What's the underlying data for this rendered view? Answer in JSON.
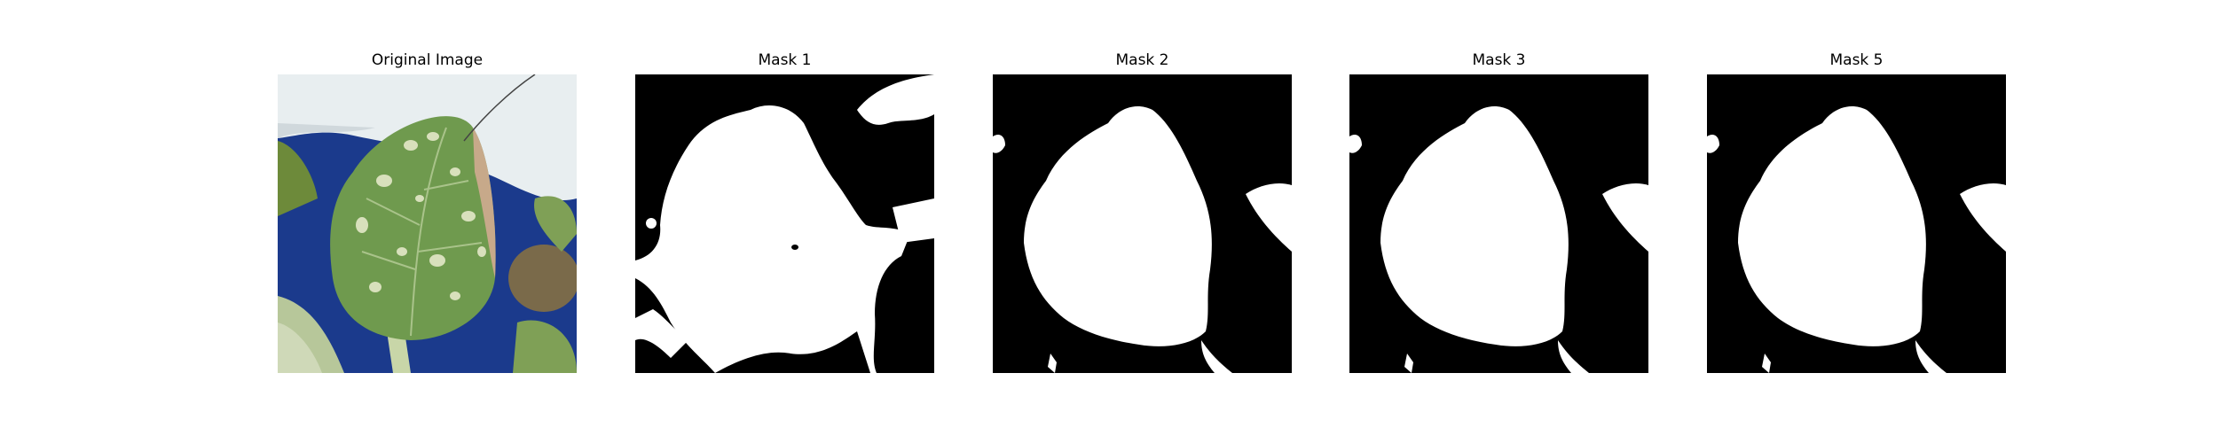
{
  "figure": {
    "panels": [
      {
        "title": "Original Image",
        "kind": "photo"
      },
      {
        "title": "Mask 1",
        "kind": "mask"
      },
      {
        "title": "Mask 2",
        "kind": "mask"
      },
      {
        "title": "Mask 3",
        "kind": "mask"
      },
      {
        "title": "Mask 5",
        "kind": "mask"
      }
    ],
    "colors": {
      "mask_background": "#000000",
      "mask_foreground": "#ffffff",
      "photo_background": "#1b3a8c",
      "photo_wall": "#e8eef0",
      "leaf": "#6f9a4e",
      "leaf_spots": "#e4e8c8",
      "dried_leaf": "#7a6a4a"
    }
  }
}
